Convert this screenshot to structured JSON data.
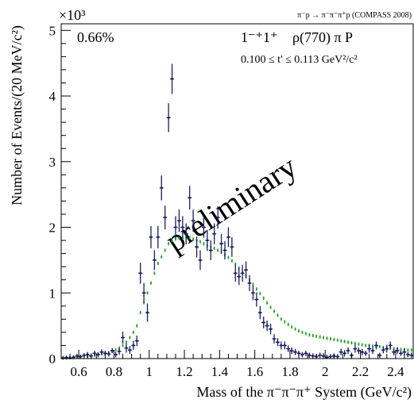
{
  "header": {
    "reaction": "π⁻p → π⁻π⁻π⁺p (COMPASS 2008)"
  },
  "annotations": {
    "percent": "0.66%",
    "wave_quantum": "1⁻⁺1⁺",
    "wave_isobar": "ρ(770) π P",
    "tprime_range": "0.100 ≤ t' ≤ 0.113 GeV²/c²",
    "watermark": "preliminary"
  },
  "colors": {
    "data": "#1a1f5e",
    "model": "#2ca02c",
    "watermark": "#c8c8c8"
  },
  "chart_data": {
    "type": "scatter",
    "xlabel": "Mass of the π⁻π⁻π⁺ System (GeV/c²)",
    "ylabel": "Number of Events/(20 MeV/c²)",
    "y_multiplier": "×10³",
    "xlim": [
      0.5,
      2.5
    ],
    "ylim": [
      0,
      5100
    ],
    "x_ticks": [
      0.6,
      0.8,
      1.0,
      1.2,
      1.4,
      1.6,
      1.8,
      2.0,
      2.2,
      2.4
    ],
    "x_tick_labels": [
      "0.6",
      "0.8",
      "1",
      "1.2",
      "1.4",
      "1.6",
      "1.8",
      "2",
      "2.2",
      "2.4"
    ],
    "y_ticks": [
      0,
      1000,
      2000,
      3000,
      4000,
      5000
    ],
    "y_tick_labels": [
      "0",
      "1",
      "2",
      "3",
      "4",
      "5"
    ],
    "grid": false,
    "bin_width": 0.02,
    "series": [
      {
        "x": [
          0.51,
          0.53,
          0.55,
          0.57,
          0.59,
          0.61,
          0.63,
          0.65,
          0.67,
          0.69,
          0.71,
          0.73,
          0.75,
          0.77,
          0.79,
          0.81,
          0.83,
          0.85,
          0.87,
          0.89,
          0.91,
          0.93,
          0.95,
          0.97,
          0.99,
          1.01,
          1.03,
          1.05,
          1.07,
          1.09,
          1.11,
          1.13,
          1.15,
          1.17,
          1.19,
          1.21,
          1.23,
          1.25,
          1.27,
          1.29,
          1.31,
          1.33,
          1.35,
          1.37,
          1.39,
          1.41,
          1.43,
          1.45,
          1.47,
          1.49,
          1.51,
          1.53,
          1.55,
          1.57,
          1.59,
          1.61,
          1.63,
          1.65,
          1.67,
          1.69,
          1.71,
          1.73,
          1.75,
          1.77,
          1.79,
          1.81,
          1.83,
          1.85,
          1.87,
          1.89,
          1.91,
          1.93,
          1.95,
          1.97,
          1.99,
          2.01,
          2.03,
          2.05,
          2.07,
          2.09,
          2.11,
          2.13,
          2.15,
          2.17,
          2.19,
          2.21,
          2.23,
          2.25,
          2.27,
          2.29,
          2.31,
          2.33,
          2.35,
          2.37,
          2.39,
          2.41,
          2.43,
          2.45,
          2.47,
          2.49
        ],
        "y": [
          10,
          15,
          10,
          20,
          40,
          30,
          50,
          60,
          40,
          80,
          60,
          100,
          80,
          70,
          120,
          60,
          110,
          320,
          160,
          130,
          200,
          270,
          1300,
          1000,
          700,
          1850,
          1500,
          1850,
          2600,
          2150,
          3670,
          4260,
          2000,
          2100,
          2000,
          1900,
          2450,
          2100,
          1700,
          1500,
          2000,
          1800,
          1650,
          1900,
          2150,
          1750,
          1650,
          1850,
          1700,
          1300,
          1250,
          1300,
          1350,
          1150,
          1000,
          900,
          700,
          550,
          500,
          450,
          300,
          250,
          200,
          200,
          150,
          120,
          100,
          80,
          60,
          80,
          50,
          40,
          30,
          50,
          40,
          20,
          30,
          40,
          30,
          100,
          80,
          120,
          50,
          150,
          120,
          100,
          80,
          150,
          120,
          200,
          50,
          130,
          150,
          200,
          100,
          120,
          80,
          100,
          60,
          50
        ],
        "yerr": [
          30,
          30,
          30,
          30,
          30,
          30,
          30,
          40,
          40,
          40,
          40,
          40,
          40,
          40,
          40,
          40,
          50,
          90,
          70,
          60,
          70,
          80,
          160,
          150,
          140,
          170,
          150,
          170,
          190,
          180,
          220,
          230,
          170,
          170,
          170,
          160,
          180,
          170,
          160,
          150,
          160,
          160,
          150,
          160,
          170,
          150,
          140,
          150,
          150,
          130,
          130,
          130,
          130,
          120,
          110,
          110,
          100,
          90,
          80,
          80,
          70,
          60,
          60,
          60,
          50,
          50,
          50,
          40,
          40,
          40,
          40,
          40,
          40,
          40,
          40,
          40,
          40,
          40,
          40,
          50,
          50,
          50,
          40,
          60,
          50,
          50,
          40,
          60,
          50,
          60,
          40,
          50,
          60,
          60,
          50,
          50,
          40,
          50,
          40,
          40
        ]
      },
      {
        "x": [
          0.51,
          0.53,
          0.55,
          0.57,
          0.59,
          0.61,
          0.63,
          0.65,
          0.67,
          0.69,
          0.71,
          0.73,
          0.75,
          0.77,
          0.79,
          0.81,
          0.83,
          0.85,
          0.87,
          0.89,
          0.91,
          0.93,
          0.95,
          0.97,
          0.99,
          1.01,
          1.03,
          1.05,
          1.07,
          1.09,
          1.11,
          1.13,
          1.15,
          1.17,
          1.19,
          1.21,
          1.23,
          1.25,
          1.27,
          1.29,
          1.31,
          1.33,
          1.35,
          1.37,
          1.39,
          1.41,
          1.43,
          1.45,
          1.47,
          1.49,
          1.51,
          1.53,
          1.55,
          1.57,
          1.59,
          1.61,
          1.63,
          1.65,
          1.67,
          1.69,
          1.71,
          1.73,
          1.75,
          1.77,
          1.79,
          1.81,
          1.83,
          1.85,
          1.87,
          1.89,
          1.91,
          1.93,
          1.95,
          1.97,
          1.99,
          2.01,
          2.03,
          2.05,
          2.07,
          2.09,
          2.11,
          2.13,
          2.15,
          2.17,
          2.19,
          2.21,
          2.23,
          2.25,
          2.27,
          2.29,
          2.31,
          2.33,
          2.35,
          2.37,
          2.39,
          2.41,
          2.43,
          2.45,
          2.47,
          2.49
        ],
        "y": [
          5,
          8,
          12,
          15,
          20,
          25,
          30,
          35,
          40,
          50,
          60,
          70,
          80,
          90,
          110,
          130,
          160,
          200,
          250,
          320,
          400,
          500,
          700,
          850,
          1000,
          1150,
          1300,
          1450,
          1550,
          1650,
          1750,
          1800,
          1820,
          1830,
          1840,
          1850,
          1840,
          1820,
          1800,
          1780,
          1750,
          1720,
          1700,
          1680,
          1650,
          1620,
          1580,
          1540,
          1490,
          1440,
          1380,
          1320,
          1260,
          1200,
          1130,
          1060,
          990,
          920,
          850,
          780,
          720,
          660,
          600,
          560,
          520,
          480,
          450,
          420,
          400,
          380,
          360,
          350,
          340,
          330,
          320,
          310,
          300,
          290,
          280,
          270,
          260,
          250,
          240,
          230,
          220,
          210,
          200,
          200,
          190,
          180,
          180,
          170,
          160,
          160,
          150,
          150,
          140,
          140,
          130,
          130
        ],
        "xerr": 0.01,
        "yerr": 25
      }
    ]
  }
}
